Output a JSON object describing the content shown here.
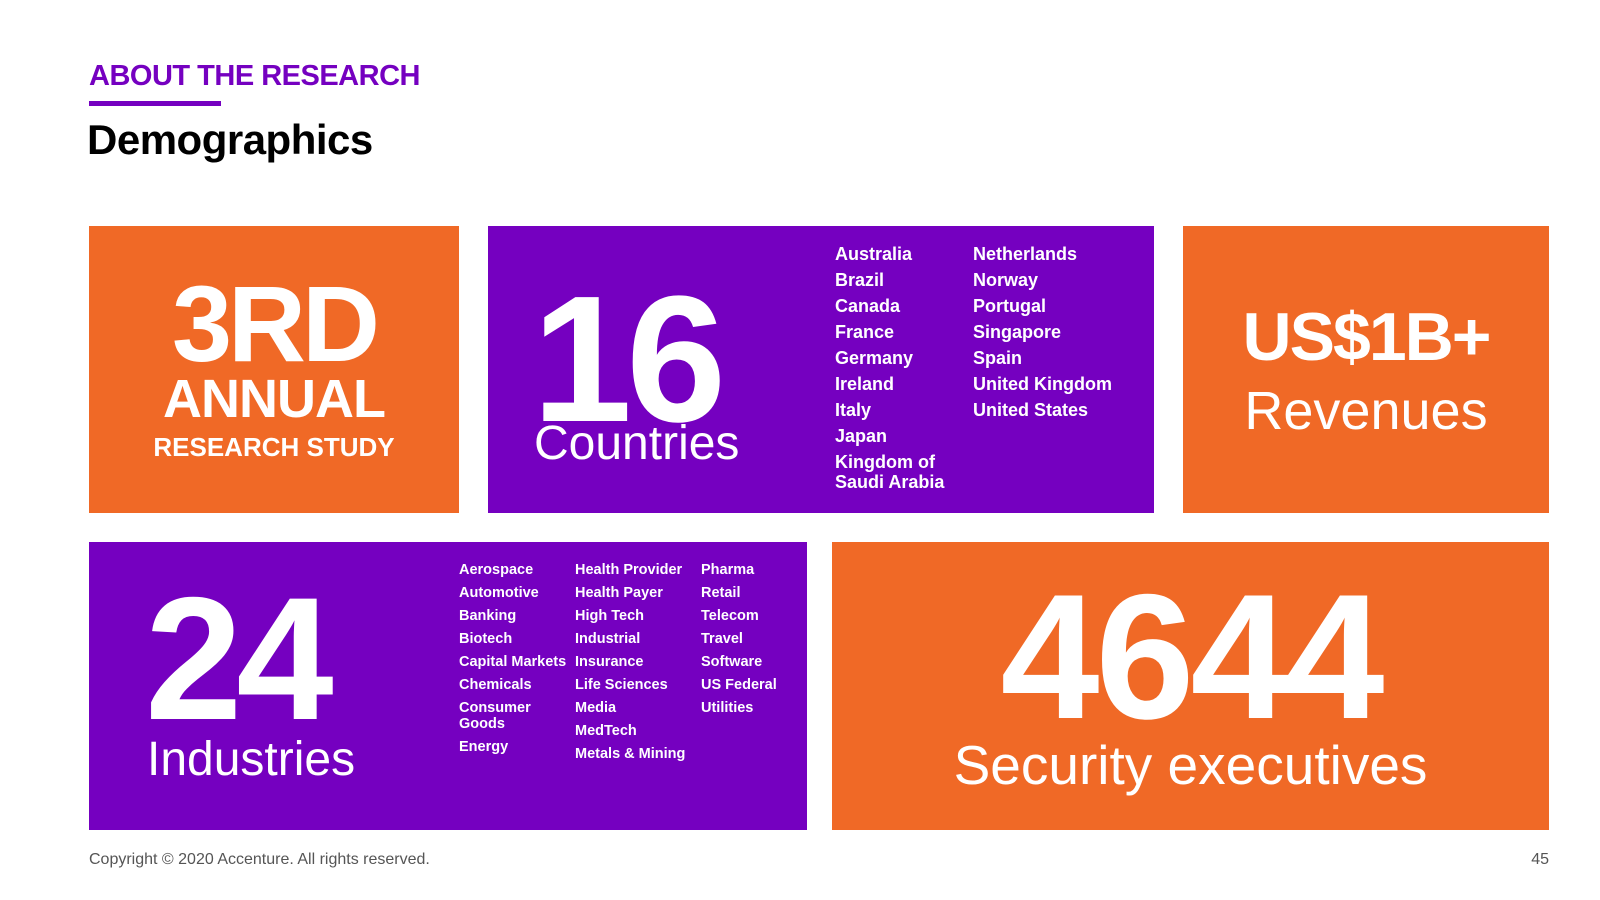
{
  "header": {
    "eyebrow": "ABOUT THE RESEARCH",
    "title": "Demographics"
  },
  "tiles": {
    "annual": {
      "big": "3RD",
      "mid": "ANNUAL",
      "small": "RESEARCH STUDY"
    },
    "countries": {
      "count": "16",
      "label": "Countries",
      "column_1": [
        "Australia",
        "Brazil",
        "Canada",
        "France",
        "Germany",
        "Ireland",
        "Italy",
        "Japan",
        "Kingdom of Saudi Arabia"
      ],
      "column_2": [
        "Netherlands",
        "Norway",
        "Portugal",
        "Singapore",
        "Spain",
        "United Kingdom",
        "United States"
      ]
    },
    "revenue": {
      "value": "US$1B+",
      "label": "Revenues"
    },
    "industries": {
      "count": "24",
      "label": "Industries",
      "column_1": [
        "Aerospace",
        "Automotive",
        "Banking",
        "Biotech",
        "Capital Markets",
        "Chemicals",
        "Consumer Goods",
        "Energy"
      ],
      "column_2": [
        "Health Provider",
        "Health Payer",
        "High Tech",
        "Industrial",
        "Insurance",
        "Life Sciences",
        "Media",
        "MedTech",
        "Metals & Mining"
      ],
      "column_3": [
        "Pharma",
        "Retail",
        "Telecom",
        "Travel",
        "Software",
        "US Federal",
        "Utilities"
      ]
    },
    "executives": {
      "count": "4644",
      "label": "Security executives"
    }
  },
  "footer": {
    "copyright": "Copyright © 2020 Accenture. All rights reserved.",
    "page_number": "45"
  },
  "colors": {
    "purple": "#7500c0",
    "orange": "#f06926"
  }
}
